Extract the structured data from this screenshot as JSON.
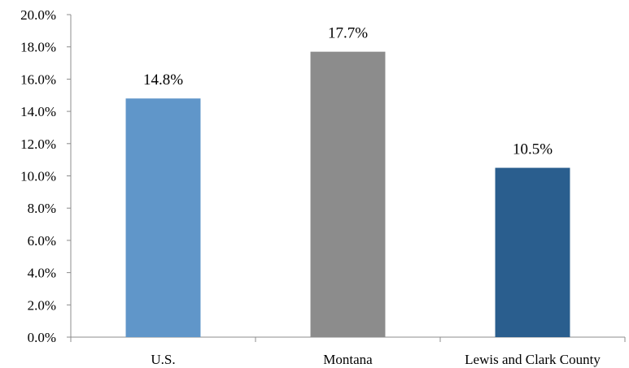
{
  "chart_data": {
    "type": "bar",
    "categories": [
      "U.S.",
      "Montana",
      "Lewis and Clark County"
    ],
    "values": [
      14.8,
      17.7,
      10.5
    ],
    "data_labels": [
      "14.8%",
      "17.7%",
      "10.5%"
    ],
    "colors": [
      "#6096c9",
      "#8c8c8c",
      "#2a5e8e"
    ],
    "title": "",
    "xlabel": "",
    "ylabel": "",
    "ylim": [
      0,
      20
    ],
    "yticks": [
      0,
      2,
      4,
      6,
      8,
      10,
      12,
      14,
      16,
      18,
      20
    ],
    "ytick_labels": [
      "0.0%",
      "2.0%",
      "4.0%",
      "6.0%",
      "8.0%",
      "10.0%",
      "12.0%",
      "14.0%",
      "16.0%",
      "18.0%",
      "20.0%"
    ],
    "grid": false,
    "legend": "none"
  }
}
